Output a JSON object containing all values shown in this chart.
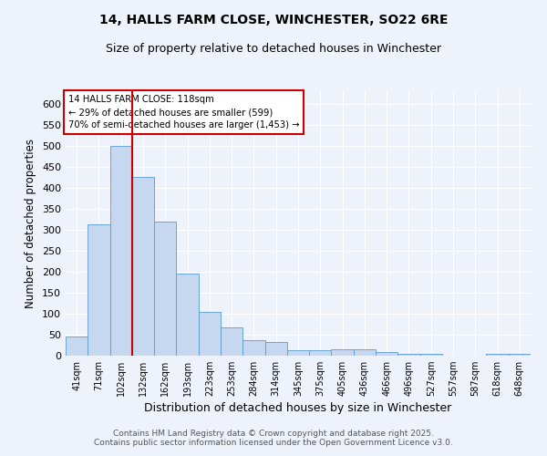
{
  "title_line1": "14, HALLS FARM CLOSE, WINCHESTER, SO22 6RE",
  "title_line2": "Size of property relative to detached houses in Winchester",
  "xlabel": "Distribution of detached houses by size in Winchester",
  "ylabel": "Number of detached properties",
  "categories": [
    "41sqm",
    "71sqm",
    "102sqm",
    "132sqm",
    "162sqm",
    "193sqm",
    "223sqm",
    "253sqm",
    "284sqm",
    "314sqm",
    "345sqm",
    "375sqm",
    "405sqm",
    "436sqm",
    "466sqm",
    "496sqm",
    "527sqm",
    "557sqm",
    "587sqm",
    "618sqm",
    "648sqm"
  ],
  "values": [
    46,
    312,
    500,
    425,
    320,
    196,
    105,
    68,
    37,
    33,
    14,
    14,
    15,
    15,
    9,
    5,
    4,
    1,
    1,
    4,
    4
  ],
  "bar_color": "#c5d8f0",
  "bar_edge_color": "#5b9bd5",
  "red_line_index": 2,
  "red_line_color": "#cc0000",
  "ylim": [
    0,
    630
  ],
  "yticks": [
    0,
    50,
    100,
    150,
    200,
    250,
    300,
    350,
    400,
    450,
    500,
    550,
    600
  ],
  "annotation_text": "14 HALLS FARM CLOSE: 118sqm\n← 29% of detached houses are smaller (599)\n70% of semi-detached houses are larger (1,453) →",
  "annotation_box_color": "#ffffff",
  "annotation_box_edge": "#cc0000",
  "bg_color": "#eef2fb",
  "grid_color": "#ffffff",
  "footer": "Contains HM Land Registry data © Crown copyright and database right 2025.\nContains public sector information licensed under the Open Government Licence v3.0."
}
